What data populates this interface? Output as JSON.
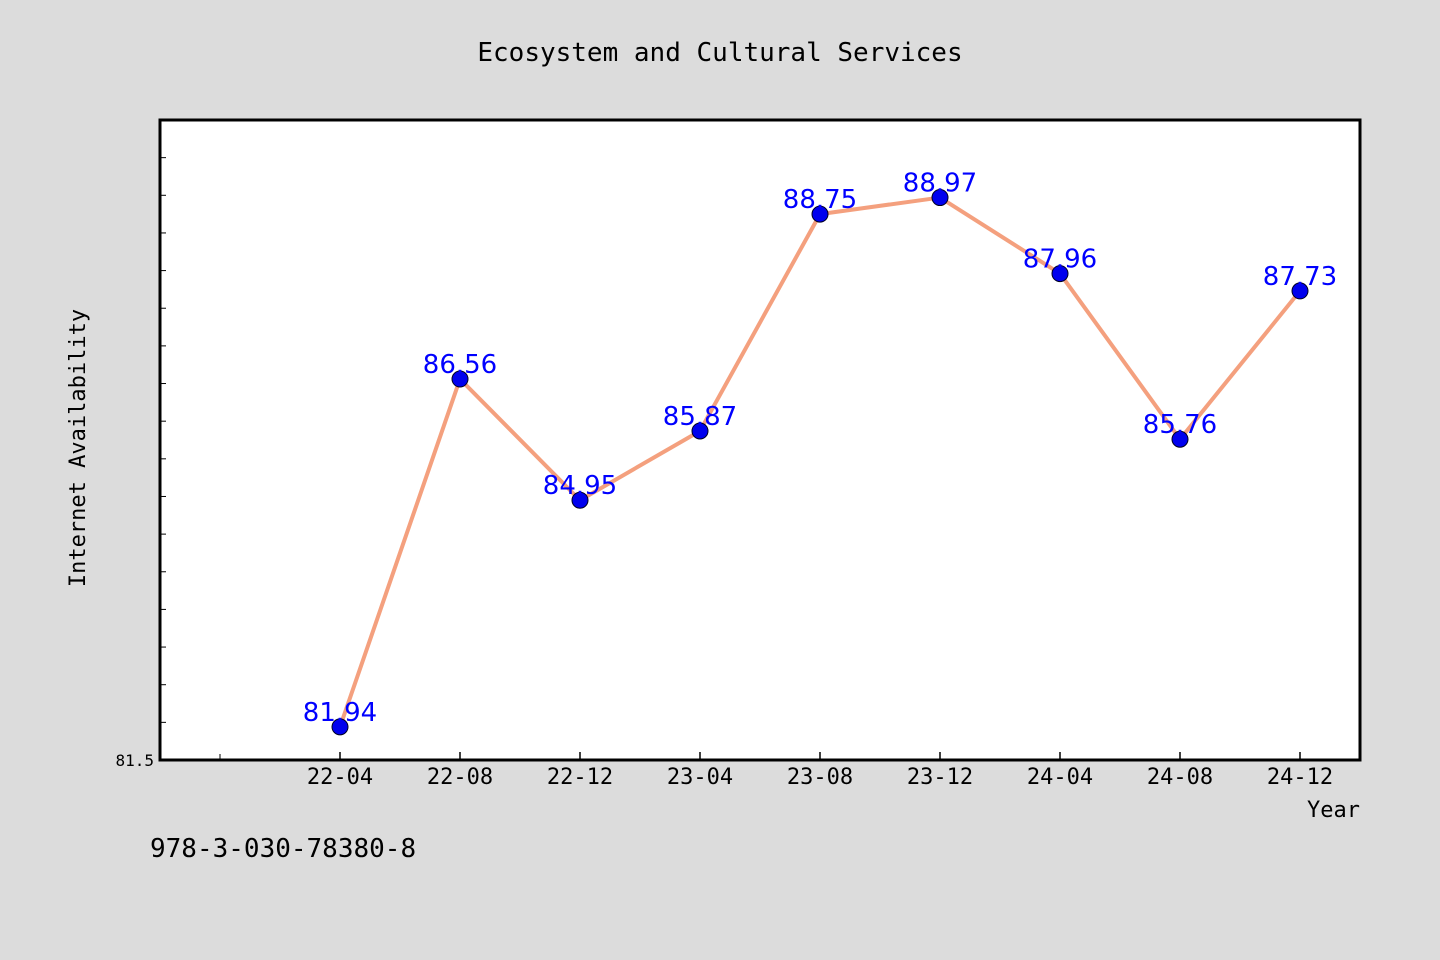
{
  "chart_data": {
    "type": "line",
    "title": "Ecosystem and Cultural Services",
    "xlabel": "Year",
    "ylabel": "Internet Availability",
    "categories": [
      "22-04",
      "22-08",
      "22-12",
      "23-04",
      "23-08",
      "23-12",
      "24-04",
      "24-08",
      "24-12"
    ],
    "series": [
      {
        "values": [
          81.94,
          86.56,
          84.95,
          85.87,
          88.75,
          88.97,
          87.96,
          85.76,
          87.73
        ]
      }
    ],
    "ylim": [
      81.5,
      90.0
    ],
    "y_tick_labels": [
      "81.5"
    ],
    "grid": false,
    "line_color": "#f4a07e",
    "marker_color": "#0000ee",
    "label_color": "#0000ff"
  },
  "footer": {
    "code": "978-3-030-78380-8"
  }
}
